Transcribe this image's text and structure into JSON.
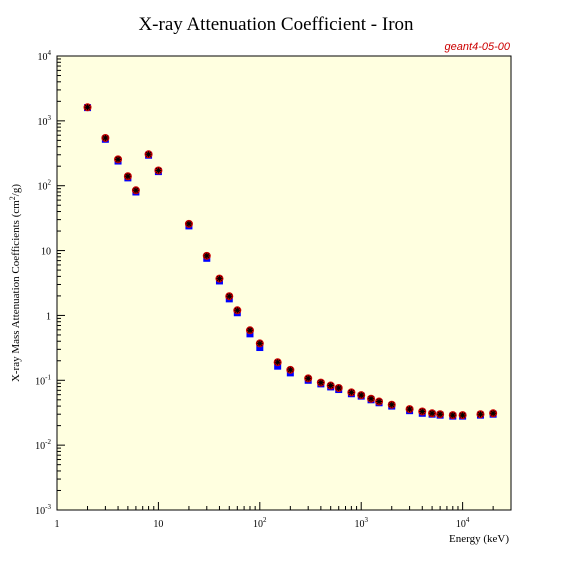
{
  "chart_data": {
    "type": "scatter",
    "title": "X-ray Attenuation Coefficient - Iron",
    "tag": "geant4-05-00",
    "xlabel": "Energy (keV)",
    "ylabel_pre": "X-ray Mass Attenuation Coefficients (cm",
    "ylabel_sup": "2",
    "ylabel_post": "/g)",
    "x_scale": "log",
    "y_scale": "log",
    "xlim": [
      1,
      30000
    ],
    "ylim": [
      0.001,
      10000
    ],
    "grid": false,
    "plot_background": "#ffffe0",
    "x_ticks": [
      {
        "value": 1,
        "base": "1",
        "sup": ""
      },
      {
        "value": 10,
        "base": "10",
        "sup": ""
      },
      {
        "value": 100,
        "base": "10",
        "sup": "2"
      },
      {
        "value": 1000,
        "base": "10",
        "sup": "3"
      },
      {
        "value": 10000,
        "base": "10",
        "sup": "4"
      }
    ],
    "y_ticks": [
      {
        "value": 0.001,
        "base": "10",
        "sup": "-3"
      },
      {
        "value": 0.01,
        "base": "10",
        "sup": "-2"
      },
      {
        "value": 0.1,
        "base": "10",
        "sup": "-1"
      },
      {
        "value": 1,
        "base": "1",
        "sup": ""
      },
      {
        "value": 10,
        "base": "10",
        "sup": ""
      },
      {
        "value": 100,
        "base": "10",
        "sup": "2"
      },
      {
        "value": 1000,
        "base": "10",
        "sup": "3"
      },
      {
        "value": 10000,
        "base": "10",
        "sup": "4"
      }
    ],
    "series": [
      {
        "marker": "square",
        "color": "#0000ff",
        "x": [
          2,
          3,
          4,
          5,
          6,
          8,
          10,
          20,
          30,
          40,
          50,
          60,
          80,
          100,
          150,
          200,
          300,
          400,
          500,
          600,
          800,
          1000,
          1250,
          1500,
          2000,
          3000,
          4000,
          5000,
          6000,
          8000,
          10000,
          15000,
          20000
        ],
        "y": [
          1600,
          520,
          240,
          132,
          80,
          295,
          165,
          24,
          7.6,
          3.4,
          1.8,
          1.1,
          0.52,
          0.32,
          0.165,
          0.13,
          0.1,
          0.088,
          0.079,
          0.072,
          0.062,
          0.057,
          0.05,
          0.045,
          0.04,
          0.034,
          0.031,
          0.03,
          0.029,
          0.028,
          0.028,
          0.029,
          0.03
        ]
      },
      {
        "marker": "circle",
        "color": "#cc0000",
        "x": [
          2,
          3,
          4,
          5,
          6,
          8,
          10,
          20,
          30,
          40,
          50,
          60,
          80,
          100,
          150,
          200,
          300,
          400,
          500,
          600,
          800,
          1000,
          1250,
          1500,
          2000,
          3000,
          4000,
          5000,
          6000,
          8000,
          10000,
          15000,
          20000
        ],
        "y": [
          1620,
          545,
          255,
          140,
          85,
          305,
          172,
          25.8,
          8.3,
          3.7,
          1.98,
          1.2,
          0.59,
          0.37,
          0.19,
          0.145,
          0.107,
          0.092,
          0.083,
          0.076,
          0.065,
          0.059,
          0.052,
          0.047,
          0.042,
          0.036,
          0.033,
          0.031,
          0.03,
          0.029,
          0.029,
          0.03,
          0.031
        ]
      },
      {
        "marker": "star",
        "color": "#000000",
        "x": [
          2,
          3,
          4,
          5,
          6,
          8,
          10,
          20,
          30,
          40,
          50,
          60,
          80,
          100,
          150,
          200,
          300,
          400,
          500,
          600,
          800,
          1000,
          1250,
          1500,
          2000,
          3000,
          4000,
          5000,
          6000,
          8000,
          10000,
          15000,
          20000
        ],
        "y": [
          1620,
          545,
          255,
          140,
          85,
          305,
          172,
          25.8,
          8.3,
          3.7,
          1.98,
          1.2,
          0.59,
          0.37,
          0.19,
          0.145,
          0.107,
          0.092,
          0.083,
          0.076,
          0.065,
          0.059,
          0.052,
          0.047,
          0.042,
          0.036,
          0.033,
          0.031,
          0.03,
          0.029,
          0.029,
          0.03,
          0.031
        ]
      }
    ]
  }
}
